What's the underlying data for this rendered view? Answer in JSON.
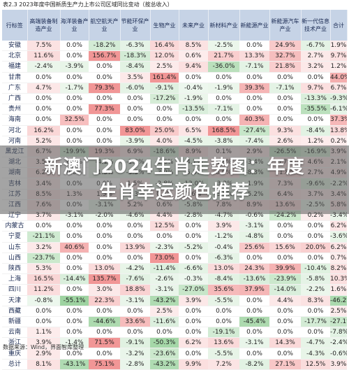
{
  "caption": "表2.3 2023年度中国新质生产力上市公司区域同比变动（按总收入）",
  "columns": [
    "行标签",
    "高端装备制造产业",
    "海洋装备产业",
    "航空航天产业",
    "节能环保产业",
    "生物产业",
    "未来产业",
    "新材料产业",
    "新能源产业",
    "新能源汽车产业",
    "新一代信息技术产业",
    "合计"
  ],
  "rows": [
    [
      "安徽",
      "7.5%",
      "0.0%",
      "-18.2%",
      "-6.3%",
      "16.4%",
      "8.5%",
      "-2.5%",
      "0.0%",
      "24.9%",
      "-6.7%",
      "1.9%"
    ],
    [
      "北京",
      "11.6%",
      "0.0%",
      "156.7%",
      "-18.3%",
      "12.0%",
      "0.6%",
      "21.7%",
      "13.3%",
      "32.7%",
      "2.7%",
      "9.7%"
    ],
    [
      "福建",
      "-2.4%",
      "-3.9%",
      "0.0%",
      "-8.4%",
      "2.5%",
      "9.4%",
      "-36.0%",
      "-7.1%",
      "21.8%",
      "3.2%",
      "1.2%"
    ],
    [
      "甘肃",
      "0.0%",
      "0.0%",
      "0.0%",
      "3.5%",
      "161.4%",
      "0.0%",
      "0.0%",
      "0.0%",
      "0.0%",
      "0.0%",
      "44.0%"
    ],
    [
      "广东",
      "4.7%",
      "-1.7%",
      "79.3%",
      "-6.0%",
      "-9.1%",
      "-0.4%",
      "-1.9%",
      "39.3%",
      "-7.1%",
      "9.7%",
      "6.7%"
    ],
    [
      "广西",
      "0.0%",
      "0.0%",
      "0.0%",
      "0.0%",
      "-17.2%",
      "-1.9%",
      "0.0%",
      "0.0%",
      "0.0%",
      "-13.3%",
      "-9.3%"
    ],
    [
      "贵州",
      "0.0%",
      "0.0%",
      "77.3%",
      "0.0%",
      "0.0%",
      "-13.5%",
      "-7.1%",
      "0.0%",
      "0.0%",
      "-35.5%",
      "-6.1%"
    ],
    [
      "海南",
      "0.0%",
      "32.5%",
      "0.0%",
      "0.0%",
      "0.0%",
      "0.0%",
      "0.0%",
      "40.3%",
      "0.0%",
      "0.0%",
      "37.3%"
    ],
    [
      "河北",
      "16.2%",
      "0.0%",
      "0.0%",
      "83.0%",
      "25.0%",
      "6.5%",
      "168.5%",
      "-27.4%",
      "9.3%",
      "-8.4%",
      "13.8%"
    ],
    [
      "河南",
      "5.2%",
      "0.0%",
      "0.0%",
      "-3.9%",
      "4.0%",
      "-4.5%",
      "-3.8%",
      "-7.4%",
      "2.6%",
      "1.2%",
      "0.2%"
    ],
    [
      "黑龙江",
      "6.7%",
      "-19.9%",
      "19.3%",
      "6.9%",
      "-18.6%",
      "8.9%",
      "0.1%",
      "2.9%",
      "-26.5%",
      "-16.9%",
      "3.9%"
    ],
    [
      "湖北",
      "3.5%",
      "0.0%",
      "-4.1%",
      "-1.2%",
      "-1.6%",
      "-4.1%",
      "1.6%",
      "-3.4%",
      "5.7%",
      "4.6%",
      "2.1%"
    ],
    [
      "湖南",
      "6.2%",
      "0.0%",
      "-1.5%",
      "-3.5%",
      "-3.9%",
      "-5.3%",
      "6.0%",
      "-8.3%",
      "11.8%",
      "2.7%",
      "4.9%"
    ],
    [
      "吉林",
      "3.4%",
      "0.0%",
      "0.0%",
      "1.5%",
      "-2.8%",
      "-12.0%",
      "-3.3%",
      "-1.9%",
      "7.3%",
      "-9.6%",
      "-2.2%"
    ],
    [
      "江苏",
      "8.5%",
      "1.3%",
      "1.5%",
      "-1.3%",
      "0.9%",
      "2.6%",
      "-3.9%",
      "-5.2%",
      "6.4%",
      "3.7%",
      "3.4%"
    ],
    [
      "江西",
      "7.6%",
      "0.0%",
      "-3.1%",
      "5.2%",
      "0.6%",
      "-5.8%",
      "7.8%",
      "8.9%",
      "13.6%",
      "-2.5%",
      "5.8%"
    ],
    [
      "辽宁",
      "3.7%",
      "-3.1%",
      "-2.0%",
      "-4.6%",
      "4.4%",
      "-2.8%",
      "-4.7%",
      "-0.6%",
      "-24.2%",
      "0.2%",
      "-3.4%"
    ],
    [
      "内蒙古",
      "0.0%",
      "0.0%",
      "0.0%",
      "0.0%",
      "12.5%",
      "0.0%",
      "3.9%",
      "-3.1%",
      "0.0%",
      "0.0%",
      "6.2%"
    ],
    [
      "宁夏",
      "-21.1%",
      "0.0%",
      "0.0%",
      "0.0%",
      "0.0%",
      "0.0%",
      "-1.2%",
      "-4.8%",
      "0.0%",
      "0.0%",
      "-3.6%"
    ],
    [
      "山东",
      "3.2%",
      "40.6%",
      "0.0%",
      "13.9%",
      "-2.3%",
      "-5.2%",
      "-0.4%",
      "25.6%",
      "15.6%",
      "20.0%",
      "6.2%"
    ],
    [
      "山西",
      "-23.7%",
      "0.0%",
      "0.0%",
      "0.0%",
      "73.0%",
      "0.0%",
      "-6.3%",
      "0.0%",
      "0.0%",
      "0.0%",
      "0.7%"
    ],
    [
      "陕西",
      "5.3%",
      "0.0%",
      "13.0%",
      "-4.2%",
      "-11.4%",
      "-6.6%",
      "13.0%",
      "24.3%",
      "39.9%",
      "-10.4%",
      "8.2%"
    ],
    [
      "上海",
      "16.5%",
      "-14.4%",
      "135.7%",
      "-7.6%",
      "-2.6%",
      "-0.3%",
      "-8.4%",
      "-13.6%",
      "-23.9%",
      "-5.8%",
      "10.3%"
    ],
    [
      "四川",
      "11.2%",
      "0.0%",
      "3.0%",
      "18.8%",
      "-3.1%",
      "-27.0%",
      "35.6%",
      "37.9%",
      "-14.0%",
      "-2.2%",
      "1.6%"
    ],
    [
      "天津",
      "-0.8%",
      "-55.1%",
      "22.3%",
      "-3.1%",
      "-43.2%",
      "3.9%",
      "-5.5%",
      "0.0%",
      "4.4%",
      "8.3%",
      "-46.2%"
    ],
    [
      "西藏",
      "0.0%",
      "0.0%",
      "0.0%",
      "0.0%",
      "2.5%",
      "0.0%",
      "0.0%",
      "0.0%",
      "0.0%",
      "0.0%",
      "2.5%"
    ],
    [
      "新疆",
      "0.0%",
      "0.0%",
      "-44.6%",
      "33.6%",
      "-11.6%",
      "0.0%",
      "0.0%",
      "-45.4%",
      "0.0%",
      "-17.7%",
      "-27.1%"
    ],
    [
      "云南",
      "1.1%",
      "0.0%",
      "0.0%",
      "0.0%",
      "0.0%",
      "0.0%",
      "-19.1%",
      "0.0%",
      "0.0%",
      "0.0%",
      "-7.8%"
    ],
    [
      "浙江",
      "3.9%",
      "-1.4%",
      "71.5%",
      "-9.1%",
      "-50.3%",
      "6.2%",
      "13.6%",
      "-3.1%",
      "14.3%",
      "-4.7%",
      "-2.4%"
    ],
    [
      "重庆",
      "2.9%",
      "0.0%",
      "0.0%",
      "-3.2%",
      "-23.6%",
      "0.0%",
      "-5.5%",
      "0.0%",
      "0.0%",
      "-4.3%",
      "-0.6%"
    ],
    [
      "总计",
      "8.1%",
      "-43.1%",
      "75.1%",
      "-2.8%",
      "-43.2%",
      "9.9%",
      "7.2%",
      "-8.2%",
      "27.1%",
      "12.5%",
      "3.9%"
    ]
  ],
  "source": "数据来源：Wind，界面智库整理",
  "banner": {
    "line1": "新澳门2024生肖走势图：年度",
    "line2": "生肖幸运颜色推荐"
  },
  "colors": {
    "header_bg": "#c6d3e6",
    "positive_strong": "#f08a8a",
    "negative_strong": "#79c580",
    "banner_overlay": "#5a5a5a"
  }
}
